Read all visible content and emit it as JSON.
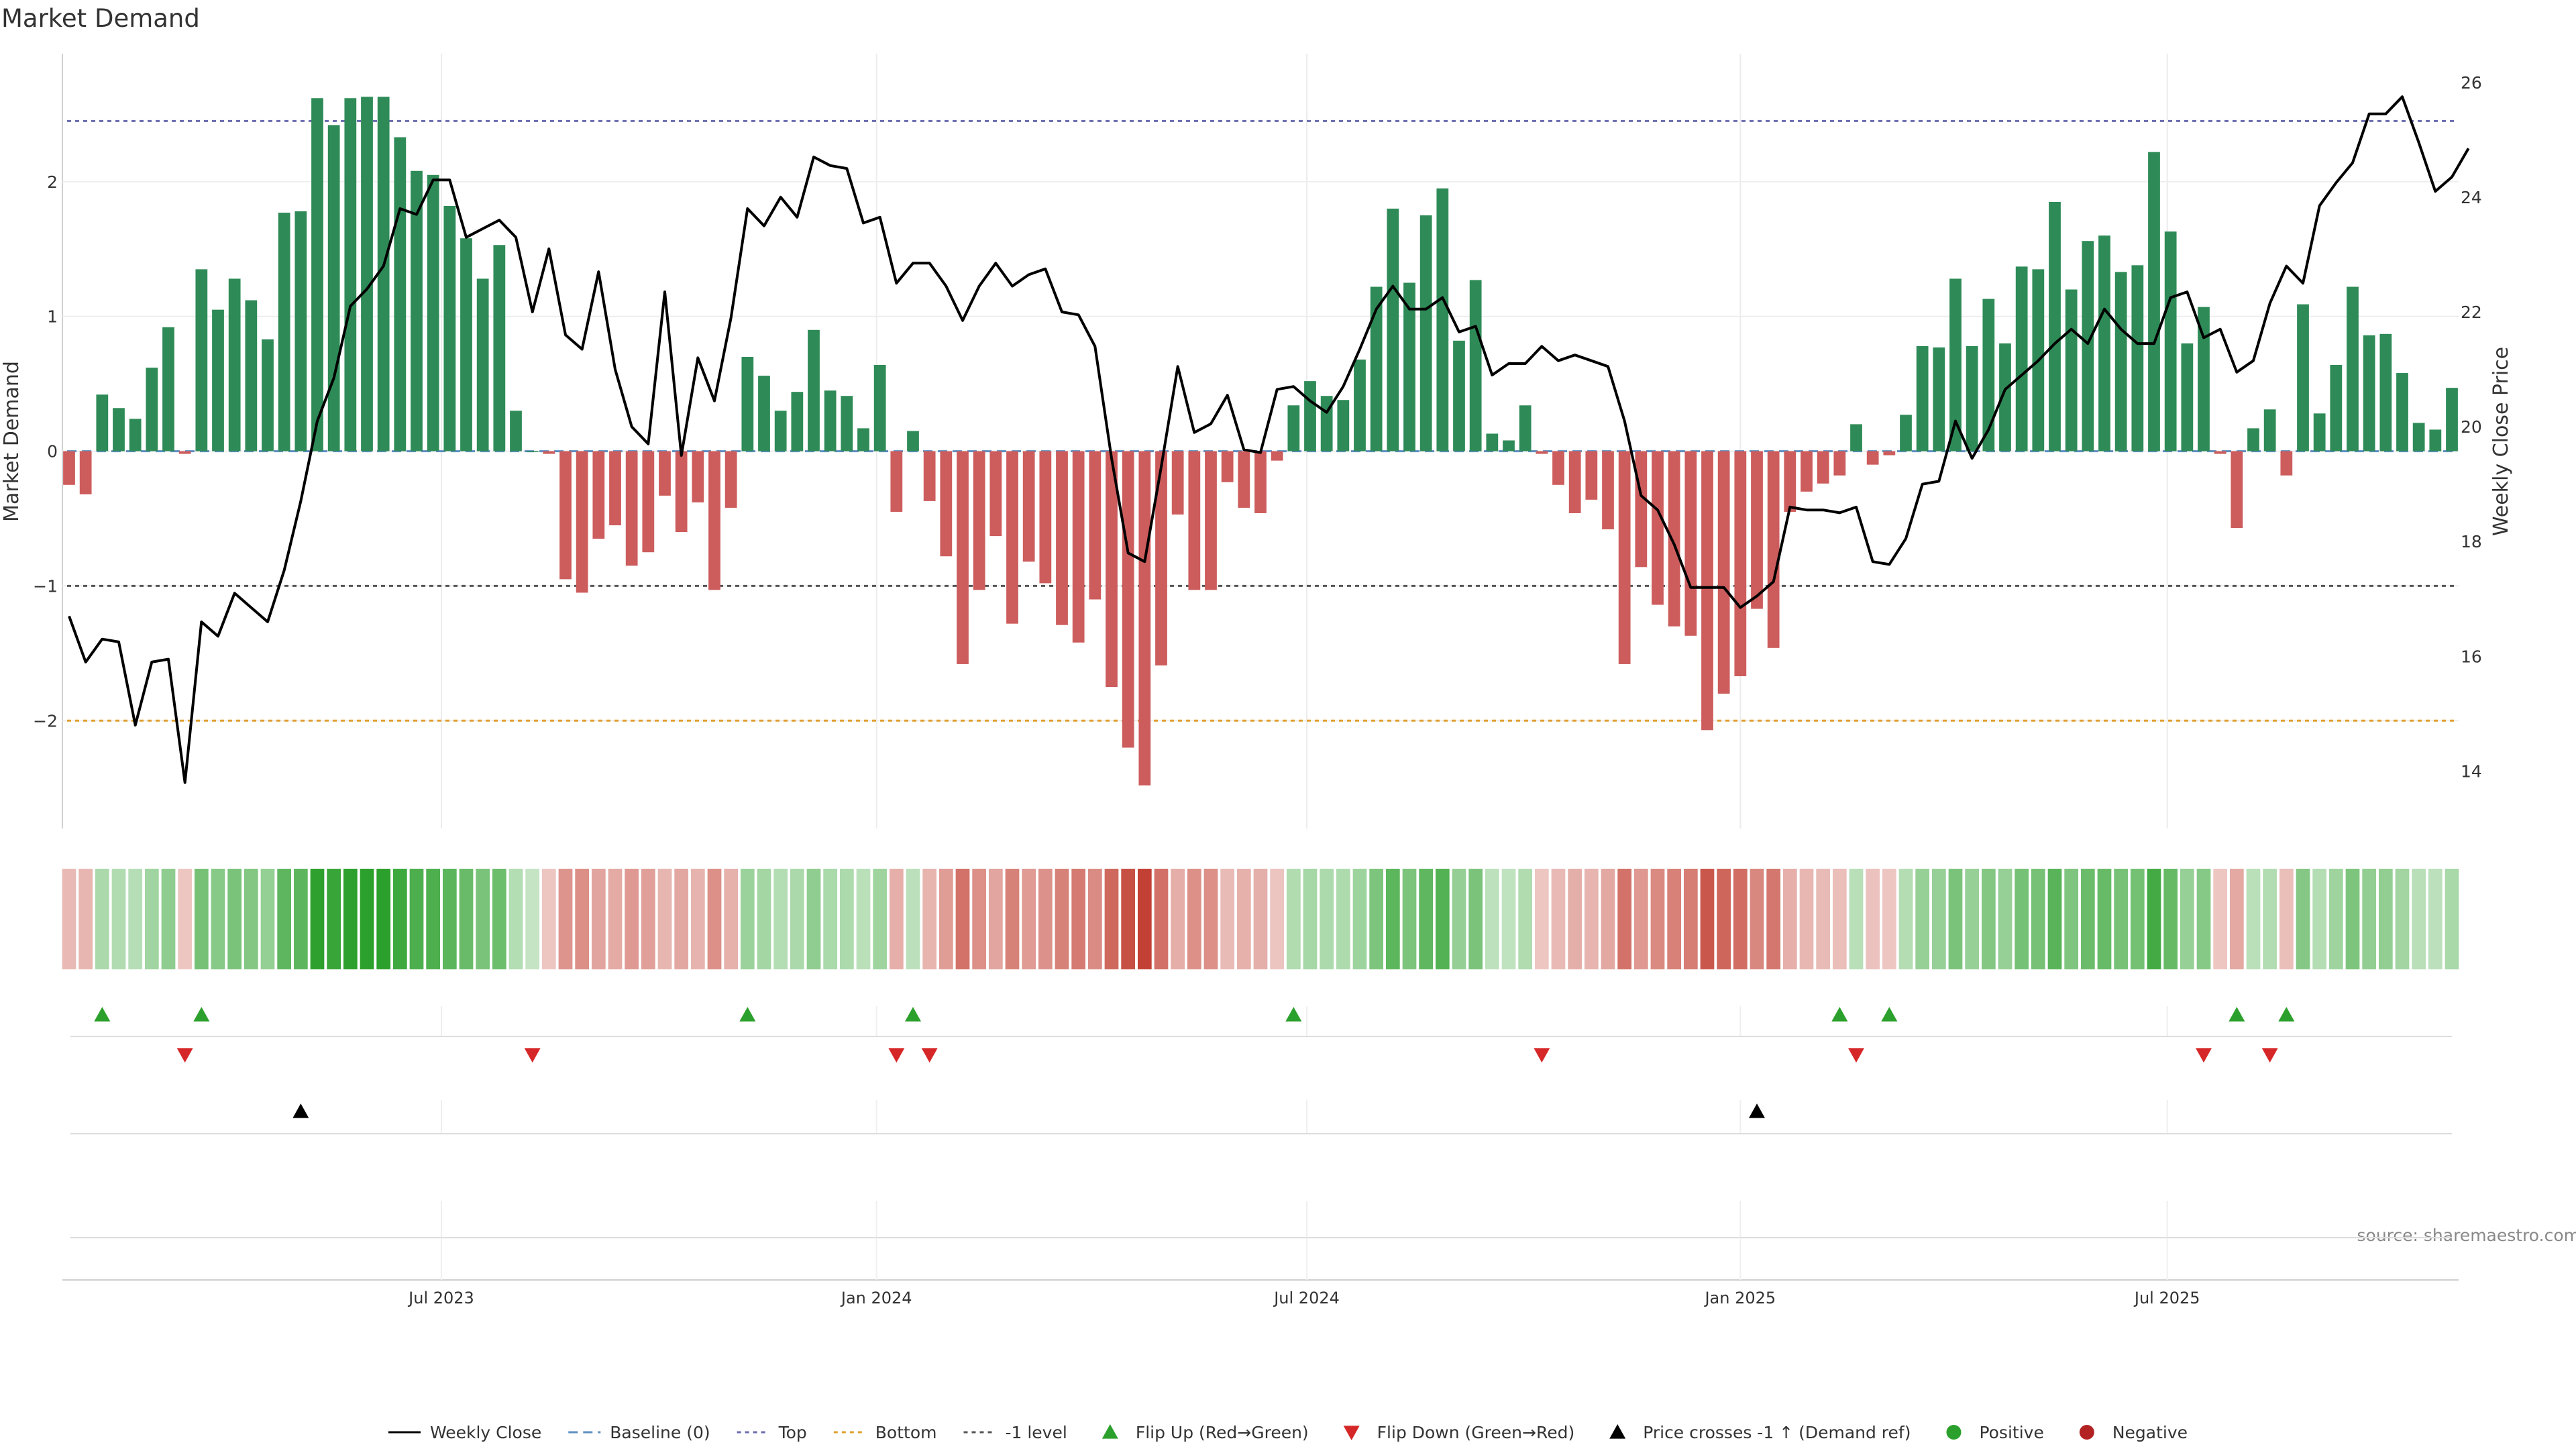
{
  "chart_data": {
    "type": "bar",
    "title": "Market Demand",
    "source": "source: sharemaestro.com",
    "colors": {
      "positive": "#2e8b57",
      "negative": "#cd5c5c",
      "price_line": "#000000",
      "top_line": "#6b6bb0",
      "bottom_line": "#e0a030",
      "minus1_line": "#555555",
      "flip_up": "#2ca02c",
      "flip_down": "#d62728",
      "crossing": "#000000"
    },
    "left_axis": {
      "label": "Market Demand",
      "ylim": [
        -2.8,
        2.95
      ],
      "ticks": [
        -2,
        -1,
        0,
        1,
        2
      ],
      "tick_labels": [
        "−2",
        "−1",
        "0",
        "1",
        "2"
      ],
      "reference_lines": {
        "top": 2.45,
        "bottom": -2.0,
        "minus_one": -1.0
      }
    },
    "right_axis": {
      "label": "Weekly Close Price",
      "ylim": [
        13.0,
        26.5
      ],
      "ticks": [
        14,
        16,
        18,
        20,
        22,
        24,
        26
      ],
      "tick_labels": [
        "14",
        "16",
        "18",
        "20",
        "22",
        "24",
        "26"
      ]
    },
    "x_axis": {
      "tick_labels": [
        "Jul 2023",
        "Jan 2024",
        "Jul 2024",
        "Jan 2025",
        "Jul 2025"
      ],
      "tick_weeks": [
        22.5,
        48.8,
        74.8,
        101,
        126.8
      ]
    },
    "demand": [
      -0.25,
      -0.32,
      0.42,
      0.32,
      0.24,
      0.62,
      0.92,
      -0.02,
      1.35,
      1.05,
      1.28,
      1.12,
      0.83,
      1.77,
      1.78,
      2.62,
      2.42,
      2.62,
      2.63,
      2.63,
      2.33,
      2.08,
      2.05,
      1.82,
      1.58,
      1.28,
      1.53,
      0.3,
      0.0,
      -0.02,
      -0.95,
      -1.05,
      -0.65,
      -0.55,
      -0.85,
      -0.75,
      -0.33,
      -0.6,
      -0.38,
      -1.03,
      -0.42,
      0.7,
      0.56,
      0.3,
      0.44,
      0.9,
      0.45,
      0.41,
      0.17,
      0.64,
      -0.45,
      0.15,
      -0.37,
      -0.78,
      -1.58,
      -1.03,
      -0.63,
      -1.28,
      -0.82,
      -0.98,
      -1.29,
      -1.42,
      -1.1,
      -1.75,
      -2.2,
      -2.48,
      -1.59,
      -0.47,
      -1.03,
      -1.03,
      -0.23,
      -0.42,
      -0.46,
      -0.07,
      0.34,
      0.52,
      0.41,
      0.38,
      0.68,
      1.22,
      1.8,
      1.25,
      1.75,
      1.95,
      0.82,
      1.27,
      0.13,
      0.08,
      0.34,
      -0.02,
      -0.25,
      -0.46,
      -0.36,
      -0.58,
      -1.58,
      -0.86,
      -1.14,
      -1.3,
      -1.37,
      -2.07,
      -1.8,
      -1.67,
      -1.17,
      -1.46,
      -0.45,
      -0.3,
      -0.24,
      -0.18,
      0.2,
      -0.1,
      -0.03,
      0.27,
      0.78,
      0.77,
      1.28,
      0.78,
      1.13,
      0.8,
      1.37,
      1.35,
      1.85,
      1.2,
      1.56,
      1.6,
      1.33,
      1.38,
      2.22,
      1.63,
      0.8,
      1.07,
      -0.02,
      -0.57,
      0.17,
      0.31,
      -0.18,
      1.09,
      0.28,
      0.64,
      1.22,
      0.86,
      0.87,
      0.58,
      0.21,
      0.16,
      0.47
    ],
    "weekly_close": [
      16.7,
      15.9,
      16.3,
      16.25,
      14.8,
      15.9,
      15.95,
      13.8,
      16.6,
      16.35,
      17.1,
      16.85,
      16.6,
      17.5,
      18.7,
      20.1,
      20.85,
      22.1,
      22.4,
      22.8,
      23.8,
      23.7,
      24.3,
      24.3,
      23.3,
      23.45,
      23.6,
      23.3,
      22.0,
      23.1,
      21.6,
      21.35,
      22.7,
      21.0,
      20.0,
      19.7,
      22.35,
      19.5,
      21.2,
      20.45,
      21.9,
      23.8,
      23.5,
      24.0,
      23.65,
      24.7,
      24.55,
      24.5,
      23.55,
      23.65,
      22.5,
      22.85,
      22.85,
      22.45,
      21.85,
      22.45,
      22.85,
      22.45,
      22.65,
      22.75,
      22.0,
      21.95,
      21.4,
      19.45,
      17.8,
      17.65,
      19.3,
      21.05,
      19.9,
      20.05,
      20.55,
      19.6,
      19.55,
      20.65,
      20.7,
      20.45,
      20.25,
      20.7,
      21.35,
      22.05,
      22.45,
      22.05,
      22.05,
      22.25,
      21.65,
      21.75,
      20.9,
      21.1,
      21.1,
      21.4,
      21.15,
      21.25,
      21.15,
      21.05,
      20.1,
      18.8,
      18.55,
      17.95,
      17.2,
      17.2,
      17.2,
      16.85,
      17.05,
      17.3,
      18.6,
      18.55,
      18.55,
      18.5,
      18.6,
      17.65,
      17.6,
      18.05,
      19.0,
      19.05,
      20.1,
      19.45,
      19.95,
      20.65,
      20.9,
      21.15,
      21.45,
      21.7,
      21.45,
      22.05,
      21.7,
      21.45,
      21.45,
      22.25,
      22.35,
      21.55,
      21.7,
      20.95,
      21.15,
      22.15,
      22.8,
      22.5,
      23.85,
      24.25,
      24.6,
      25.45,
      25.45,
      25.75,
      24.95,
      24.1,
      24.35,
      24.85
    ],
    "flip_up_weeks": [
      2,
      8,
      41,
      51,
      74,
      107,
      110,
      131,
      134
    ],
    "flip_down_weeks": [
      7,
      28,
      50,
      52,
      89,
      108,
      129,
      133
    ],
    "cross_weeks": [
      14,
      102
    ],
    "legend": [
      {
        "label": "Weekly Close",
        "kind": "line-solid"
      },
      {
        "label": "Baseline (0)",
        "kind": "line-dash-blue"
      },
      {
        "label": "Top",
        "kind": "line-dot-purple"
      },
      {
        "label": "Bottom",
        "kind": "line-dot-orange"
      },
      {
        "label": "-1 level",
        "kind": "line-dot-gray"
      },
      {
        "label": "Flip Up (Red→Green)",
        "kind": "tri-up-green"
      },
      {
        "label": "Flip Down (Green→Red)",
        "kind": "tri-down-red"
      },
      {
        "label": "Price crosses -1 ↑ (Demand ref)",
        "kind": "tri-up-black"
      },
      {
        "label": "Positive",
        "kind": "dot-green"
      },
      {
        "label": "Negative",
        "kind": "dot-red"
      }
    ]
  }
}
